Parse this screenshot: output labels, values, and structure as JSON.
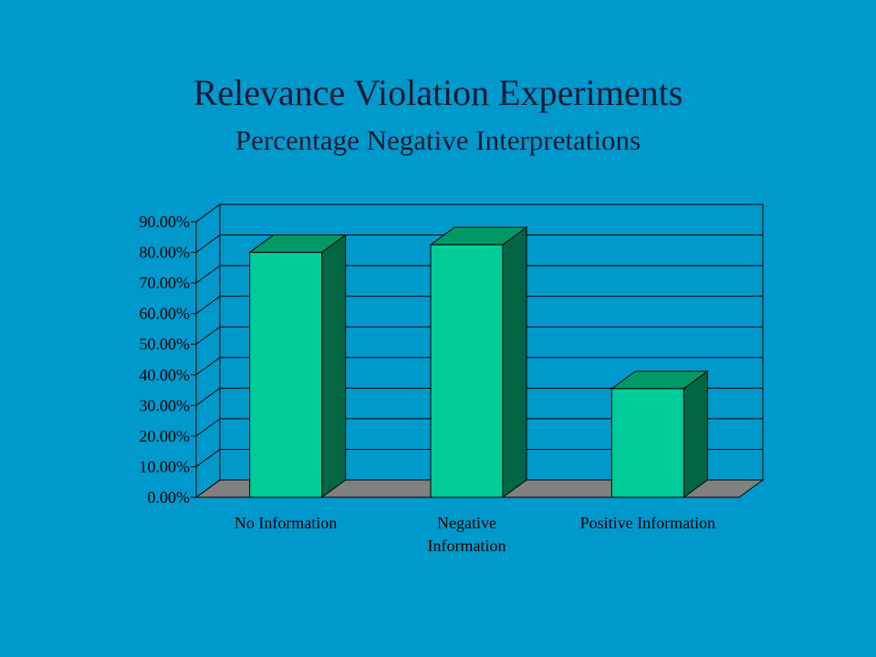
{
  "slide": {
    "title": "Relevance Violation Experiments",
    "subtitle": "Percentage Negative Interpretations"
  },
  "colors": {
    "background": "#0099CC",
    "bar_front": "#00CC99",
    "bar_side": "#006644",
    "bar_top": "#009966",
    "floor": "#808080",
    "gridline": "#000000"
  },
  "chart_data": {
    "type": "bar",
    "style": "3d-column",
    "categories": [
      [
        "No Information"
      ],
      [
        "Negative",
        "Information"
      ],
      [
        "Positive Information"
      ]
    ],
    "values": [
      0.8,
      0.825,
      0.355
    ],
    "ylim": [
      0,
      0.9
    ],
    "y_ticks": [
      "0.00%",
      "10.00%",
      "20.00%",
      "30.00%",
      "40.00%",
      "50.00%",
      "60.00%",
      "70.00%",
      "80.00%",
      "90.00%"
    ],
    "grid": true,
    "legend": "none"
  }
}
